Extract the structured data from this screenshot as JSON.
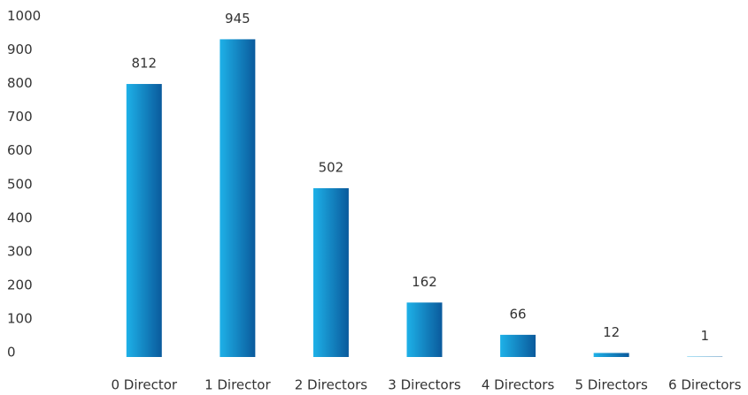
{
  "chart_data": {
    "type": "bar",
    "categories": [
      "0 Director",
      "1 Director",
      "2 Directors",
      "3 Directors",
      "4 Directors",
      "5 Directors",
      "6 Directors"
    ],
    "values": [
      812,
      945,
      502,
      162,
      66,
      12,
      1
    ],
    "colors": [
      "#1eb1e8",
      "#0a5a9c"
    ],
    "ylim": [
      0,
      1000
    ],
    "yticks": [
      0,
      100,
      200,
      300,
      400,
      500,
      600,
      700,
      800,
      900,
      1000
    ],
    "grid": false
  }
}
